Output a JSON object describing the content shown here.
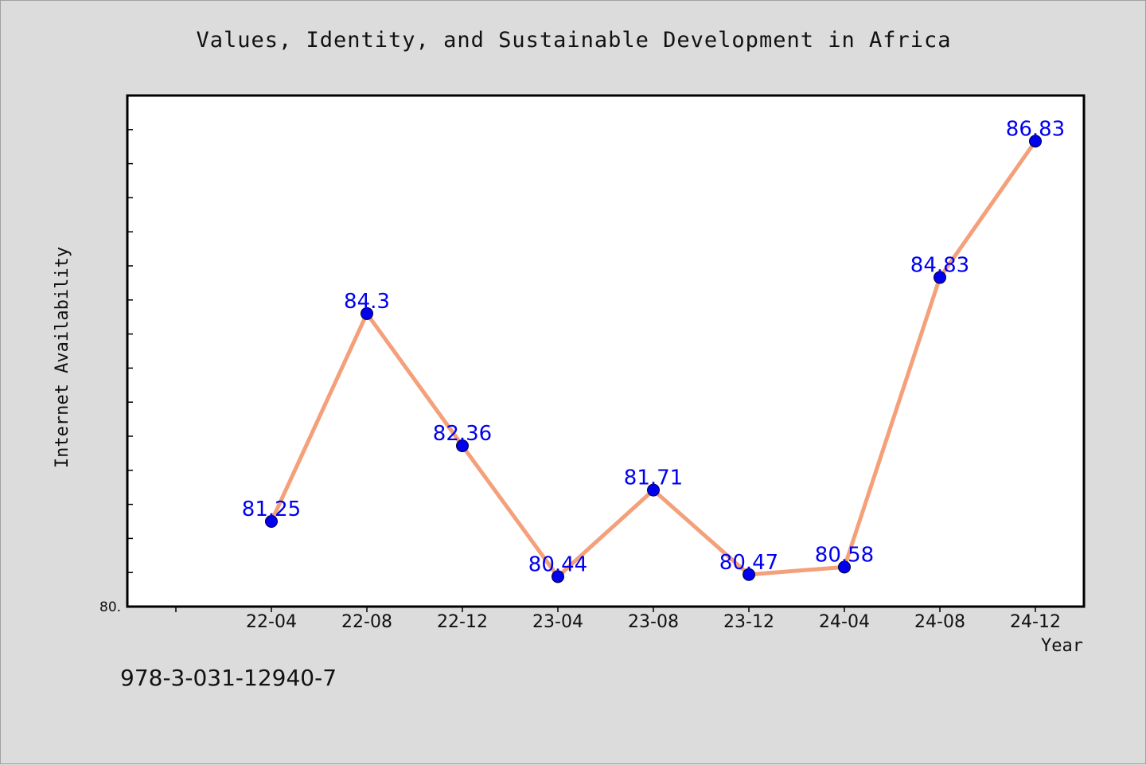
{
  "chart_data": {
    "type": "line",
    "title": "Values, Identity, and Sustainable Development in Africa",
    "xlabel": "Year",
    "ylabel": "Internet Availability",
    "categories": [
      "22-04",
      "22-08",
      "22-12",
      "23-04",
      "23-08",
      "23-12",
      "24-04",
      "24-08",
      "24-12"
    ],
    "series": [
      {
        "values": [
          81.25,
          84.3,
          82.36,
          80.44,
          81.71,
          80.47,
          80.58,
          84.83,
          86.83
        ],
        "data_labels": [
          "81.25",
          "84.3",
          "82.36",
          "80.44",
          "81.71",
          "80.47",
          "80.58",
          "84.83",
          "86.83"
        ]
      }
    ],
    "ylim": [
      80.0,
      87.5
    ],
    "y_tick_label": "80.",
    "line_color": "#f4a07a",
    "marker_color": "#0000ee",
    "label_color": "#0000ee",
    "grid": false,
    "legend": "none"
  },
  "footer": {
    "code": "978-3-031-12940-7"
  }
}
